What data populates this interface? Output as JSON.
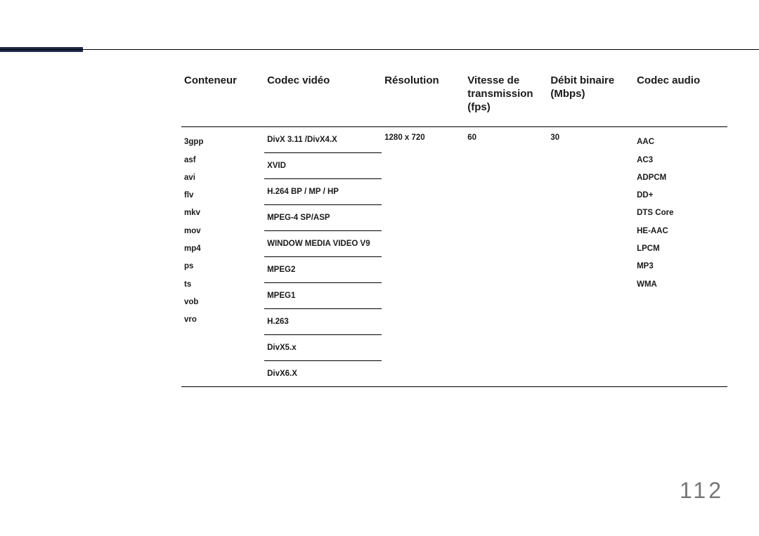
{
  "page_number": "112",
  "accent_color": "#1e2a4a",
  "table": {
    "headers": {
      "container": "Conteneur",
      "video_codec": "Codec vidéo",
      "resolution": "Résolution",
      "framerate": "Vitesse de transmission (fps)",
      "bitrate": "Débit binaire (Mbps)",
      "audio_codec": "Codec audio"
    },
    "containers": [
      "3gpp",
      "asf",
      "avi",
      "flv",
      "mkv",
      "mov",
      "mp4",
      "ps",
      "ts",
      "vob",
      "vro"
    ],
    "video_codecs": [
      "DivX 3.11 /DivX4.X",
      "XVID",
      "H.264 BP / MP / HP",
      "MPEG-4 SP/ASP",
      "WINDOW MEDIA VIDEO V9",
      "MPEG2",
      "MPEG1",
      "H.263",
      "DivX5.x",
      "DivX6.X"
    ],
    "resolution": "1280 x 720",
    "framerate": "60",
    "bitrate": "30",
    "audio_codecs": [
      "AAC",
      "AC3",
      "ADPCM",
      "DD+",
      "DTS Core",
      "HE-AAC",
      "LPCM",
      "MP3",
      "WMA"
    ]
  }
}
